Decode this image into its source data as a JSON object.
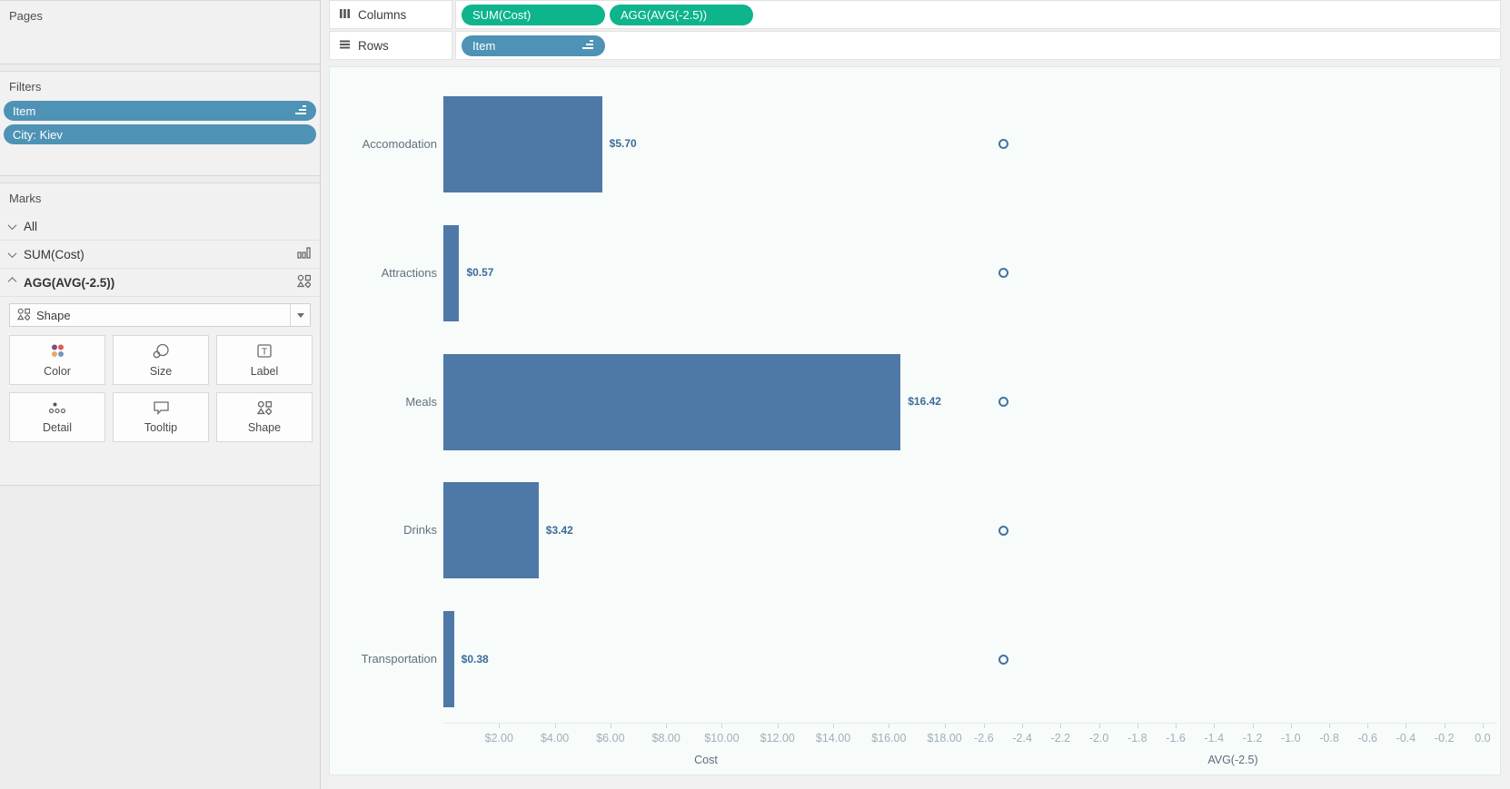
{
  "theme": {
    "green_pill": "#0db48c",
    "blue_pill": "#4e93b5",
    "bar_color": "#4e79a7",
    "circle_stroke": "#4173a5",
    "value_label_color": "#3d6b9c",
    "panel_bg": "#f7fbf9"
  },
  "sidebar": {
    "pages": {
      "title": "Pages"
    },
    "filters": {
      "title": "Filters",
      "pills": [
        {
          "label": "Item",
          "sorted": true
        },
        {
          "label": "City: Kiev",
          "sorted": false
        }
      ]
    },
    "marks": {
      "title": "Marks",
      "rows": [
        {
          "label": "All",
          "expanded": false,
          "icon": "none"
        },
        {
          "label": "SUM(Cost)",
          "expanded": false,
          "icon": "bar-chart"
        },
        {
          "label": "AGG(AVG(-2.5))",
          "expanded": true,
          "icon": "shapes"
        }
      ],
      "shape_dropdown": {
        "label": "Shape"
      },
      "buttons": [
        {
          "label": "Color"
        },
        {
          "label": "Size"
        },
        {
          "label": "Label"
        },
        {
          "label": "Detail"
        },
        {
          "label": "Tooltip"
        },
        {
          "label": "Shape"
        }
      ]
    }
  },
  "shelves": {
    "columns": {
      "label": "Columns",
      "pills": [
        {
          "label": "SUM(Cost)"
        },
        {
          "label": "AGG(AVG(-2.5))"
        }
      ]
    },
    "rows": {
      "label": "Rows",
      "pills": [
        {
          "label": "Item",
          "sorted": true
        }
      ]
    }
  },
  "chart_data": {
    "type": "bar",
    "orientation": "horizontal",
    "grid": false,
    "legend": "none",
    "categories": [
      "Accomodation",
      "Attractions",
      "Meals",
      "Drinks",
      "Transportation"
    ],
    "series": [
      {
        "name": "SUM(Cost)",
        "mark": "bar",
        "values": [
          5.7,
          0.57,
          16.42,
          3.42,
          0.38
        ],
        "value_labels": [
          "$5.70",
          "$0.57",
          "$16.42",
          "$3.42",
          "$0.38"
        ],
        "axis": {
          "title": "Cost",
          "range": [
            0,
            18.86
          ],
          "tick_values": [
            2,
            4,
            6,
            8,
            10,
            12,
            14,
            16,
            18
          ],
          "tick_labels": [
            "$2.00",
            "$4.00",
            "$6.00",
            "$8.00",
            "$10.00",
            "$12.00",
            "$14.00",
            "$16.00",
            "$18.00"
          ]
        }
      },
      {
        "name": "AGG(AVG(-2.5))",
        "mark": "circle",
        "values": [
          -2.5,
          -2.5,
          -2.5,
          -2.5,
          -2.5
        ],
        "axis": {
          "title": "AVG(-2.5)",
          "range": [
            -2.68,
            0.076
          ],
          "tick_values": [
            -2.6,
            -2.4,
            -2.2,
            -2.0,
            -1.8,
            -1.6,
            -1.4,
            -1.2,
            -1.0,
            -0.8,
            -0.6,
            -0.4,
            -0.2,
            0.0
          ],
          "tick_labels": [
            "-2.6",
            "-2.4",
            "-2.2",
            "-2.0",
            "-1.8",
            "-1.6",
            "-1.4",
            "-1.2",
            "-1.0",
            "-0.8",
            "-0.6",
            "-0.4",
            "-0.2",
            "0.0"
          ]
        }
      }
    ]
  }
}
